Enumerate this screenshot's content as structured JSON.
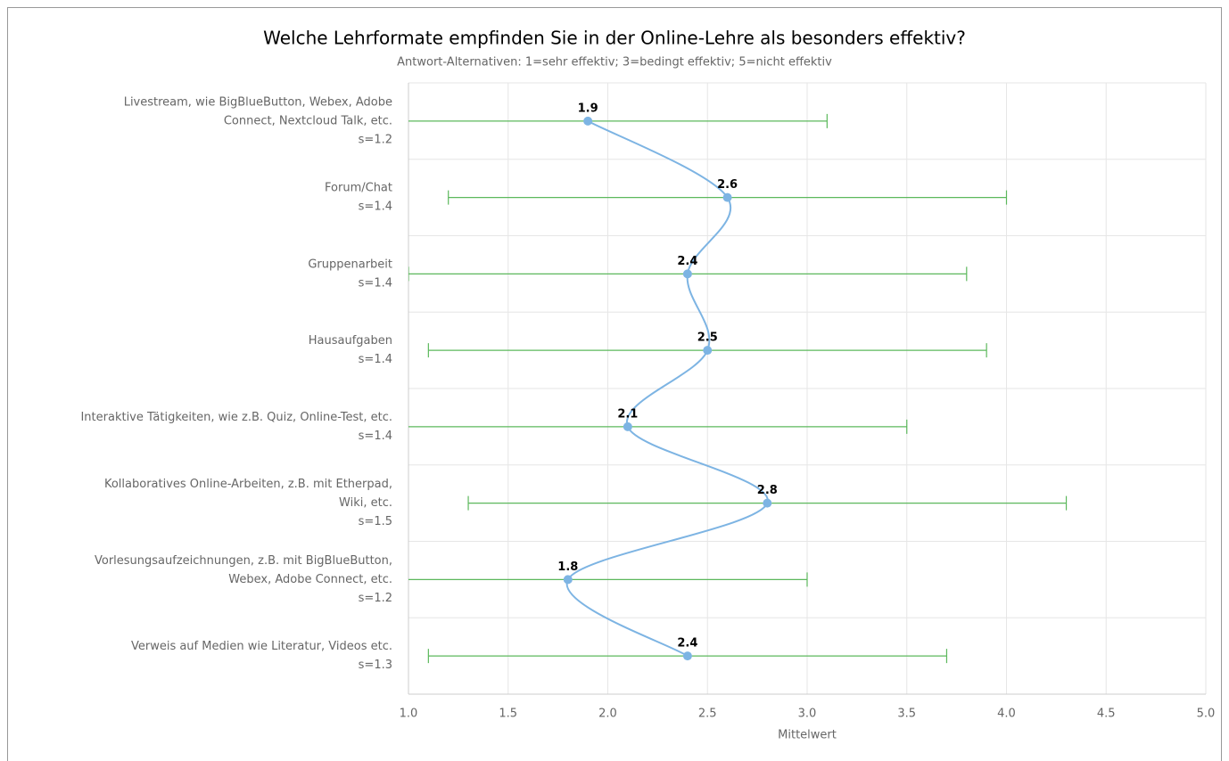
{
  "chart_data": {
    "type": "errorbar_line",
    "title": "Welche Lehrformate empfinden Sie in der Online-Lehre als besonders effektiv?",
    "subtitle": "Antwort-Alternativen: 1=sehr effektiv; 3=bedingt effektiv; 5=nicht effektiv",
    "xlabel": "Mittelwert",
    "categories": [
      [
        "Livestream, wie BigBlueButton, Webex, Adobe",
        "Connect, Nextcloud Talk, etc."
      ],
      [
        "Forum/Chat"
      ],
      [
        "Gruppenarbeit"
      ],
      [
        "Hausaufgaben"
      ],
      [
        "Interaktive Tätigkeiten, wie z.B. Quiz, Online-Test, etc."
      ],
      [
        "Kollaboratives Online-Arbeiten, z.B. mit Etherpad,",
        "Wiki, etc."
      ],
      [
        "Vorlesungsaufzeichnungen, z.B. mit BigBlueButton,",
        "Webex, Adobe Connect, etc."
      ],
      [
        "Verweis auf Medien wie Literatur, Videos etc."
      ]
    ],
    "values": [
      1.9,
      2.6,
      2.4,
      2.5,
      2.1,
      2.8,
      1.8,
      2.4
    ],
    "errors": [
      1.2,
      1.4,
      1.4,
      1.4,
      1.4,
      1.5,
      1.2,
      1.3
    ],
    "error_labels": [
      "s=1.2",
      "s=1.4",
      "s=1.4",
      "s=1.4",
      "s=1.4",
      "s=1.5",
      "s=1.2",
      "s=1.3"
    ],
    "color": "#7db4e3",
    "error_color": "#5cb85c",
    "xlim": [
      1,
      5
    ],
    "xticks": [
      {
        "value": 1,
        "label": "1.0"
      },
      1.5,
      {
        "value": 2,
        "label": "2.0"
      },
      2.5,
      {
        "value": 3,
        "label": "3.0"
      },
      3.5,
      {
        "value": 4,
        "label": "4.0"
      },
      4.5,
      {
        "value": 5,
        "label": "5.0"
      }
    ],
    "grid": true
  }
}
